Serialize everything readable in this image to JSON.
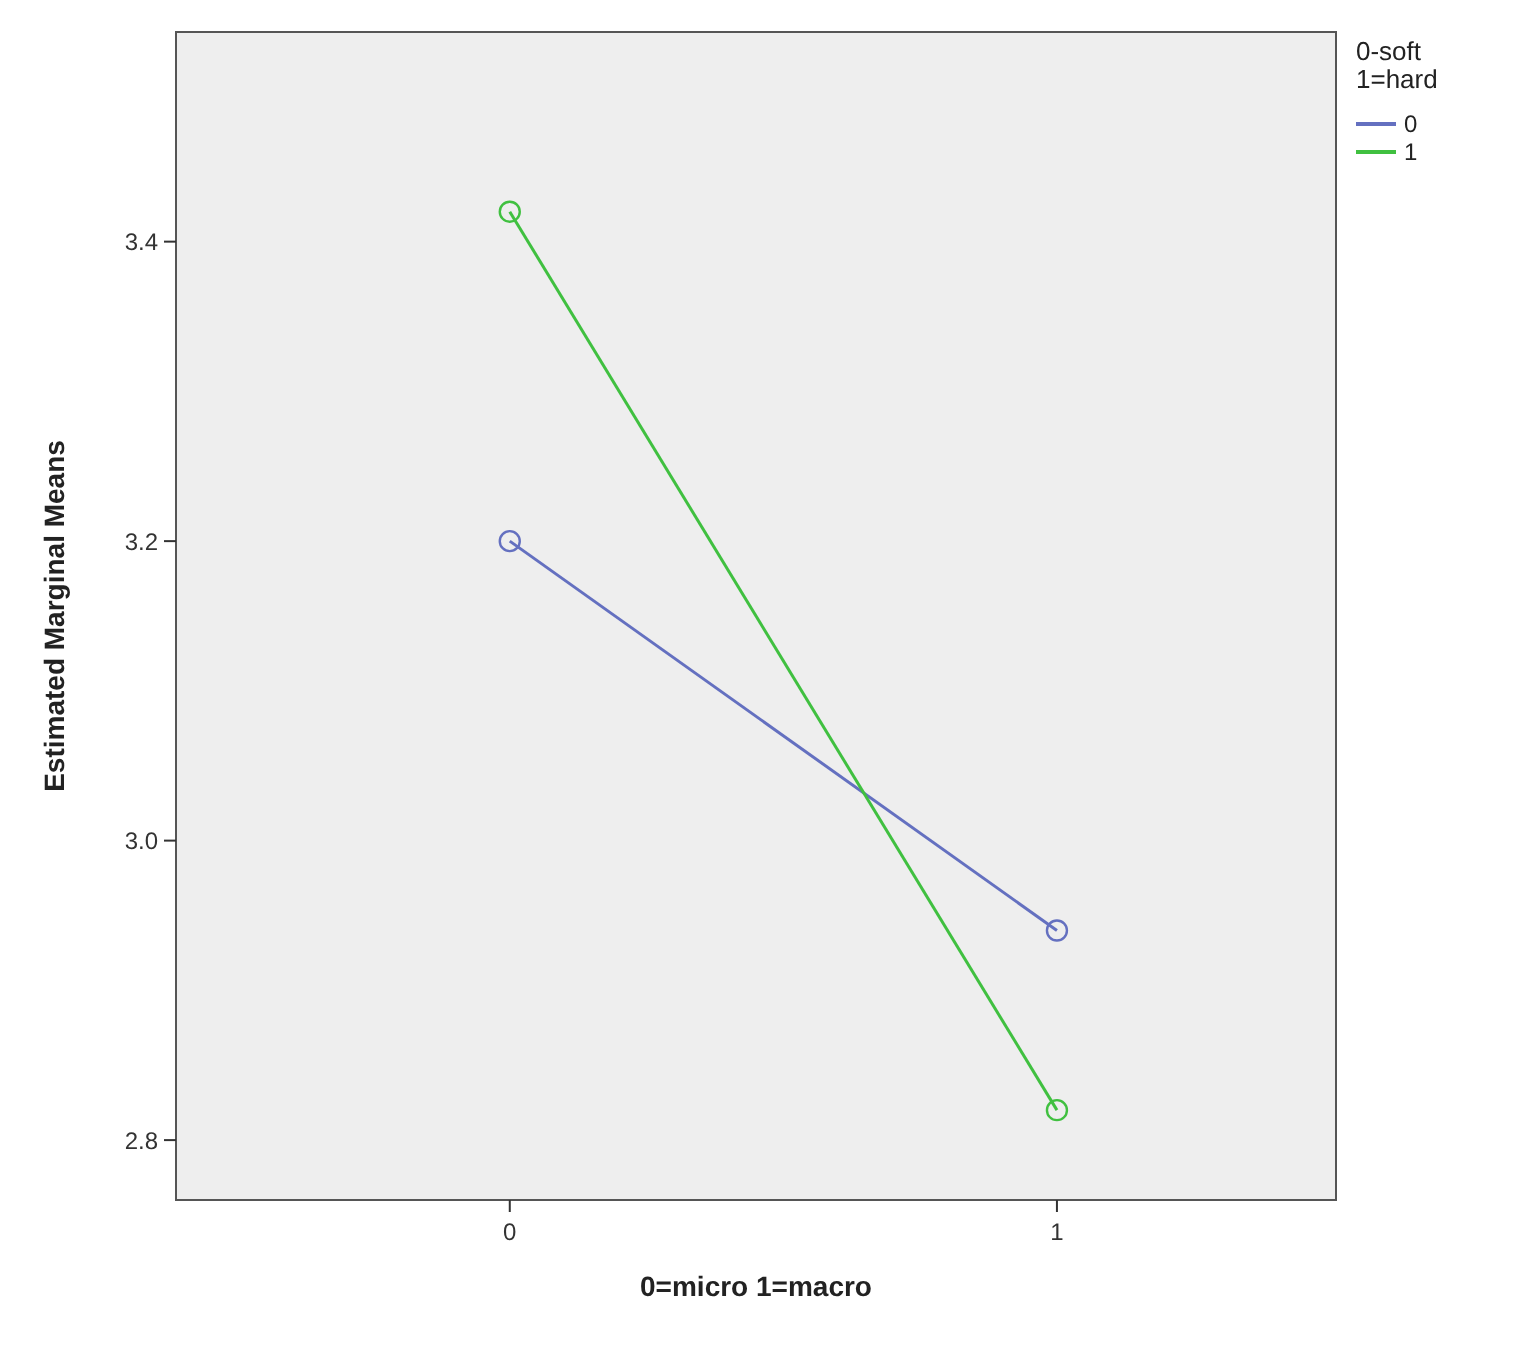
{
  "chart_data": {
    "type": "line",
    "xlabel": "0=micro 1=macro",
    "ylabel": "Estimated Marginal Means",
    "legend_title": "0-soft\n1=hard",
    "x": [
      0,
      1
    ],
    "xlim": [
      -0.61,
      1.51
    ],
    "xticks": [
      0,
      1
    ],
    "ylim": [
      2.76,
      3.54
    ],
    "yticks": [
      2.8,
      {
        "value": 3,
        "label": "3.0"
      },
      3.2,
      3.4
    ],
    "series": [
      {
        "name": "0",
        "color": "#6470c0",
        "values": [
          3.2,
          2.94
        ]
      },
      {
        "name": "1",
        "color": "#40c040",
        "values": [
          3.42,
          2.82
        ]
      }
    ],
    "marker": "circle",
    "legend": "top right",
    "grid": false
  }
}
